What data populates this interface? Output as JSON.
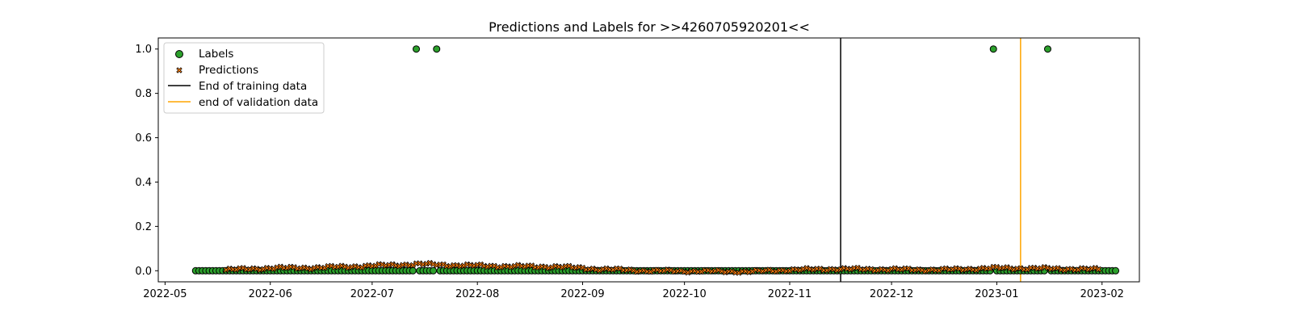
{
  "chart_data": {
    "type": "scatter",
    "title": "Predictions and Labels for >>4260705920201<<",
    "xlabel": "",
    "ylabel": "",
    "x_axis_type": "date",
    "xlim": [
      "2022-04-29",
      "2023-02-12"
    ],
    "ylim": [
      -0.05,
      1.05
    ],
    "x_ticks": [
      "2022-05-01",
      "2022-06-01",
      "2022-07-01",
      "2022-08-01",
      "2022-09-01",
      "2022-10-01",
      "2022-11-01",
      "2022-12-01",
      "2023-01-01",
      "2023-02-01"
    ],
    "x_tick_labels": [
      "2022-05",
      "2022-06",
      "2022-07",
      "2022-08",
      "2022-09",
      "2022-10",
      "2022-11",
      "2022-12",
      "2023-01",
      "2023-02"
    ],
    "y_ticks": [
      0.0,
      0.2,
      0.4,
      0.6,
      0.8,
      1.0
    ],
    "y_tick_labels": [
      "0.0",
      "0.2",
      "0.4",
      "0.6",
      "0.8",
      "1.0"
    ],
    "grid": false,
    "legend_position": "upper-left",
    "series": [
      {
        "name": "Labels",
        "kind": "scatter-circle",
        "color": "#2ca02c",
        "edge_color": "#000000",
        "start": "2022-05-10",
        "end": "2023-02-05",
        "baseline": 0.0,
        "positive_dates": [
          "2022-07-14",
          "2022-07-20",
          "2022-12-31",
          "2023-01-16"
        ],
        "positive_value": 1.0
      },
      {
        "name": "Predictions",
        "kind": "scatter-x",
        "color": "#ff7f0e",
        "edge_color": "#000000",
        "start": "2022-05-19",
        "end": "2023-01-31",
        "approx_profile": [
          [
            "2022-05-19",
            0.004
          ],
          [
            "2022-06-01",
            0.012
          ],
          [
            "2022-06-15",
            0.014
          ],
          [
            "2022-07-01",
            0.022
          ],
          [
            "2022-07-15",
            0.03
          ],
          [
            "2022-07-25",
            0.025
          ],
          [
            "2022-08-10",
            0.02
          ],
          [
            "2022-08-25",
            0.018
          ],
          [
            "2022-09-05",
            0.008
          ],
          [
            "2022-09-20",
            0.0
          ],
          [
            "2022-10-05",
            -0.002
          ],
          [
            "2022-10-20",
            -0.004
          ],
          [
            "2022-11-01",
            0.004
          ],
          [
            "2022-11-15",
            0.008
          ],
          [
            "2022-12-01",
            0.006
          ],
          [
            "2022-12-15",
            0.004
          ],
          [
            "2023-01-01",
            0.012
          ],
          [
            "2023-01-15",
            0.01
          ],
          [
            "2023-01-31",
            0.006
          ]
        ]
      }
    ],
    "vertical_lines": [
      {
        "name": "End of training data",
        "date": "2022-11-16",
        "color": "#000000"
      },
      {
        "name": "end of validation data",
        "date": "2023-01-08",
        "color": "#ffa500"
      }
    ]
  }
}
